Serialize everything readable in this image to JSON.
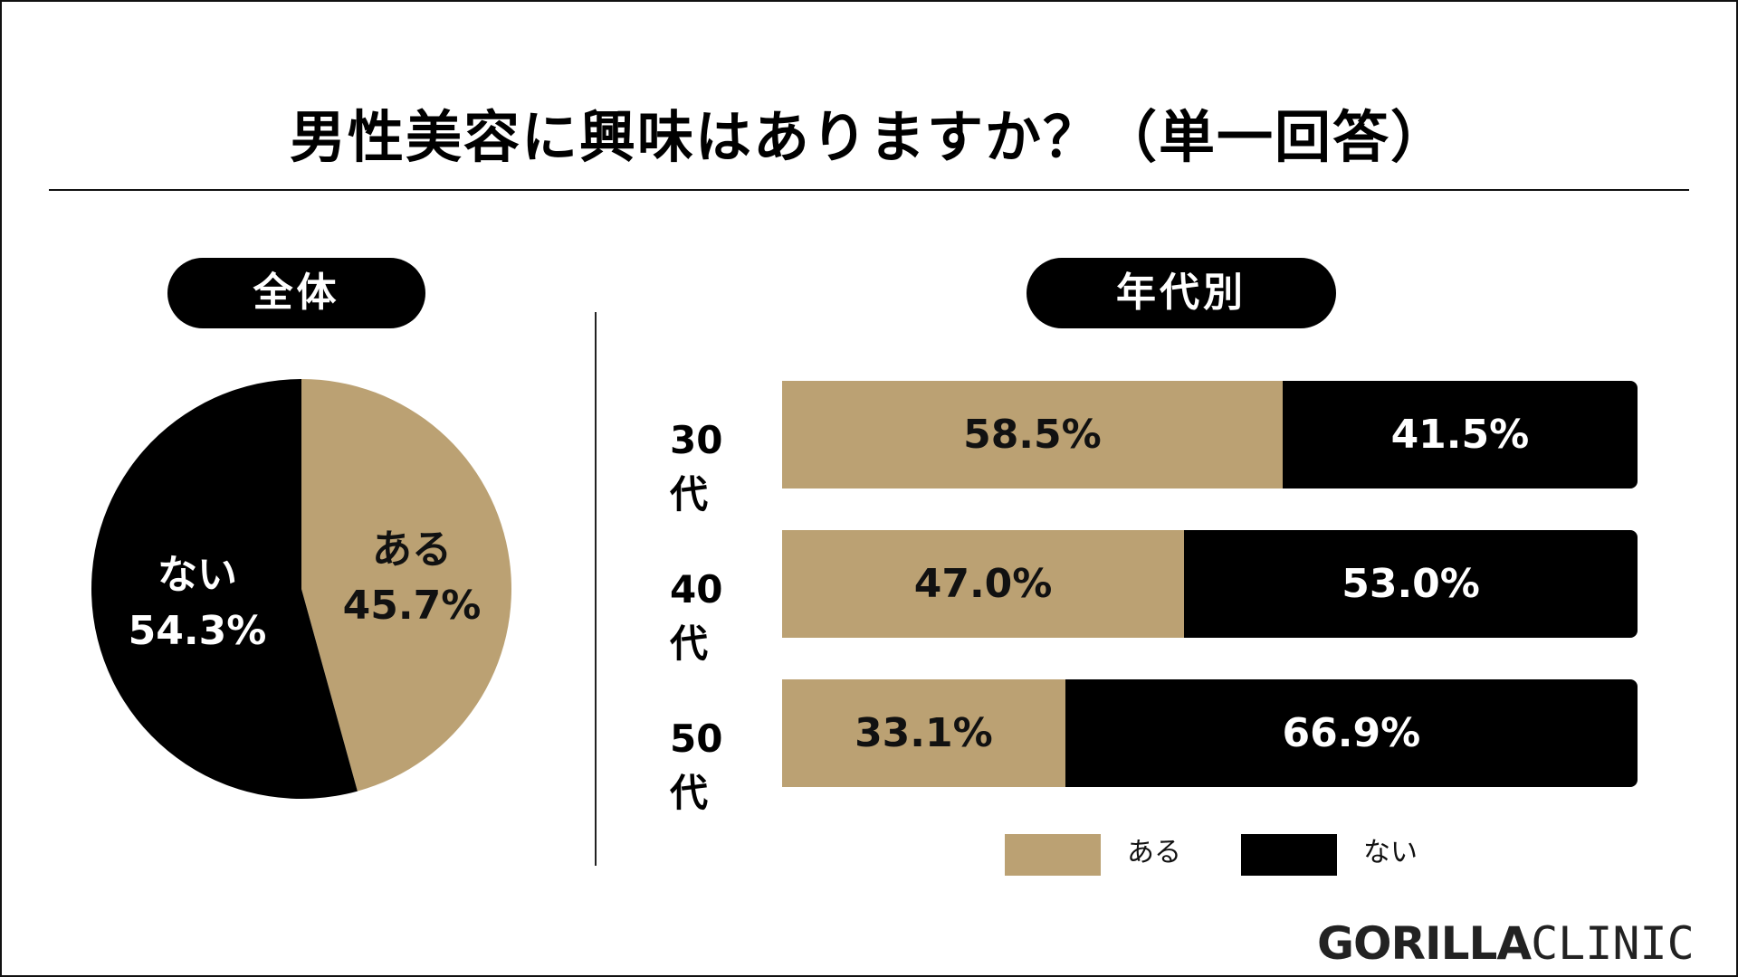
{
  "title": "男性美容に興味はありますか？（単一回答）",
  "sections": {
    "overall": "全体",
    "by_age": "年代別"
  },
  "colors": {
    "aru": "#bba173",
    "nai": "#000000"
  },
  "pie": {
    "slices": [
      {
        "label": "ある",
        "value": 45.7,
        "value_text": "45.7%",
        "color": "#bba173"
      },
      {
        "label": "ない",
        "value": 54.3,
        "value_text": "54.3%",
        "color": "#000000"
      }
    ]
  },
  "bars": [
    {
      "label": "30代",
      "aru": 58.5,
      "aru_text": "58.5%",
      "nai": 41.5,
      "nai_text": "41.5%"
    },
    {
      "label": "40代",
      "aru": 47.0,
      "aru_text": "47.0%",
      "nai": 53.0,
      "nai_text": "53.0%"
    },
    {
      "label": "50代",
      "aru": 33.1,
      "aru_text": "33.1%",
      "nai": 66.9,
      "nai_text": "66.9%"
    }
  ],
  "legend": {
    "aru": "ある",
    "nai": "ない"
  },
  "logo": {
    "bold": "GORILLA",
    "light": "CLINIC"
  },
  "chart_data": [
    {
      "type": "pie",
      "title": "全体",
      "categories": [
        "ある",
        "ない"
      ],
      "values": [
        45.7,
        54.3
      ]
    },
    {
      "type": "bar",
      "title": "年代別",
      "categories": [
        "30代",
        "40代",
        "50代"
      ],
      "series": [
        {
          "name": "ある",
          "values": [
            58.5,
            47.0,
            33.1
          ]
        },
        {
          "name": "ない",
          "values": [
            41.5,
            53.0,
            66.9
          ]
        }
      ],
      "legend": "bottom",
      "orientation": "horizontal-stacked",
      "xlim": [
        0,
        100
      ]
    }
  ]
}
